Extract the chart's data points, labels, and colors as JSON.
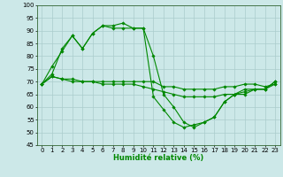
{
  "xlabel": "Humidité relative (%)",
  "background_color": "#cce8e8",
  "grid_color": "#aacccc",
  "line_color": "#008800",
  "x": [
    0,
    1,
    2,
    3,
    4,
    5,
    6,
    7,
    8,
    9,
    10,
    11,
    12,
    13,
    14,
    15,
    16,
    17,
    18,
    19,
    20,
    21,
    22,
    23
  ],
  "line1": [
    69,
    72,
    71,
    71,
    70,
    70,
    70,
    70,
    70,
    70,
    70,
    70,
    68,
    68,
    67,
    67,
    67,
    67,
    68,
    68,
    69,
    69,
    68,
    69
  ],
  "line2": [
    69,
    72,
    71,
    70,
    70,
    70,
    69,
    69,
    69,
    69,
    68,
    67,
    66,
    65,
    64,
    64,
    64,
    64,
    65,
    65,
    67,
    67,
    67,
    69
  ],
  "line3": [
    69,
    73,
    83,
    88,
    83,
    89,
    92,
    92,
    93,
    91,
    91,
    64,
    59,
    54,
    52,
    53,
    54,
    56,
    62,
    65,
    65,
    67,
    67,
    70
  ],
  "line4": [
    69,
    76,
    82,
    88,
    83,
    89,
    92,
    91,
    91,
    91,
    91,
    80,
    65,
    60,
    54,
    52,
    54,
    56,
    62,
    65,
    66,
    67,
    67,
    70
  ],
  "ylim_min": 45,
  "ylim_max": 100,
  "yticks": [
    45,
    50,
    55,
    60,
    65,
    70,
    75,
    80,
    85,
    90,
    95,
    100
  ],
  "xticks": [
    0,
    1,
    2,
    3,
    4,
    5,
    6,
    7,
    8,
    9,
    10,
    11,
    12,
    13,
    14,
    15,
    16,
    17,
    18,
    19,
    20,
    21,
    22,
    23
  ]
}
